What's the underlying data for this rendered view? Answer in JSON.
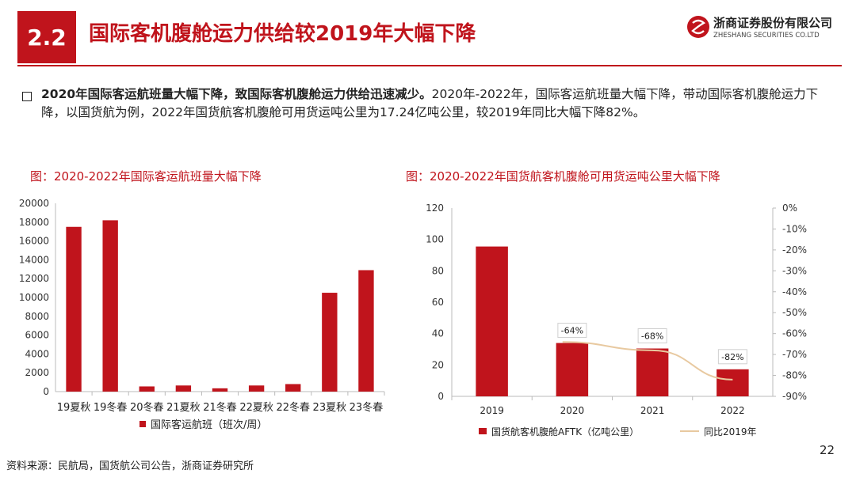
{
  "header": {
    "section_number": "2.2",
    "title": "国际客机腹舱运力供给较2019年大幅下降",
    "company_cn": "浙商证券股份有限公司",
    "company_en": "ZHESHANG SECURITIES CO.LTD"
  },
  "summary": {
    "bold": "2020年国际客运航班量大幅下降，致国际客机腹舱运力供给迅速减少。",
    "text": "2020年-2022年，国际客运航班量大幅下降，带动国际客机腹舱运力下降，以国货航为例，2022年国货航客机腹舱可用货运吨公里为17.24亿吨公里，较2019年同比大幅下降82%。"
  },
  "figure_titles": {
    "left": "图：2020-2022年国际客运航班量大幅下降",
    "right": "图：2020-2022年国货航客机腹舱可用货运吨公里大幅下降"
  },
  "chart_data": [
    {
      "type": "bar",
      "title": "图：2020-2022年国际客运航班量大幅下降",
      "categories": [
        "19夏秋",
        "19冬春",
        "20冬春",
        "21夏秋",
        "21冬春",
        "22夏秋",
        "22冬春",
        "23夏秋",
        "23冬春"
      ],
      "series": [
        {
          "name": "国际客运航班（班次/周）",
          "values": [
            17500,
            18200,
            550,
            650,
            350,
            650,
            800,
            10500,
            12900
          ]
        }
      ],
      "ylim": [
        0,
        20000
      ],
      "yticks": [
        0,
        2000,
        4000,
        6000,
        8000,
        10000,
        12000,
        14000,
        16000,
        18000,
        20000
      ],
      "color": "#c0141c",
      "legend_position": "bottom"
    },
    {
      "type": "bar",
      "title": "图：2020-2022年国货航客机腹舱可用货运吨公里大幅下降",
      "categories": [
        "2019",
        "2020",
        "2021",
        "2022"
      ],
      "series": [
        {
          "name": "国货航客机腹舱AFTK（亿吨公里）",
          "type": "bar",
          "axis": "left",
          "values": [
            95.5,
            34.0,
            30.5,
            17.24
          ]
        },
        {
          "name": "同比2019年",
          "type": "line",
          "axis": "right",
          "values": [
            null,
            -64,
            -68,
            -82
          ]
        }
      ],
      "data_labels": [
        null,
        "-64%",
        "-68%",
        "-82%"
      ],
      "ylim_left": [
        0,
        120
      ],
      "yticks_left": [
        0,
        20,
        40,
        60,
        80,
        100,
        120
      ],
      "ylim_right": [
        -90,
        0
      ],
      "yticks_right": [
        "0%",
        "-10%",
        "-20%",
        "-30%",
        "-40%",
        "-50%",
        "-60%",
        "-70%",
        "-80%",
        "-90%"
      ],
      "bar_color": "#c0141c",
      "line_color": "#e8c9a0",
      "legend_position": "bottom"
    }
  ],
  "footer": {
    "source": "资料来源：民航局，国货航公司公告，浙商证券研究所",
    "page": "22"
  }
}
